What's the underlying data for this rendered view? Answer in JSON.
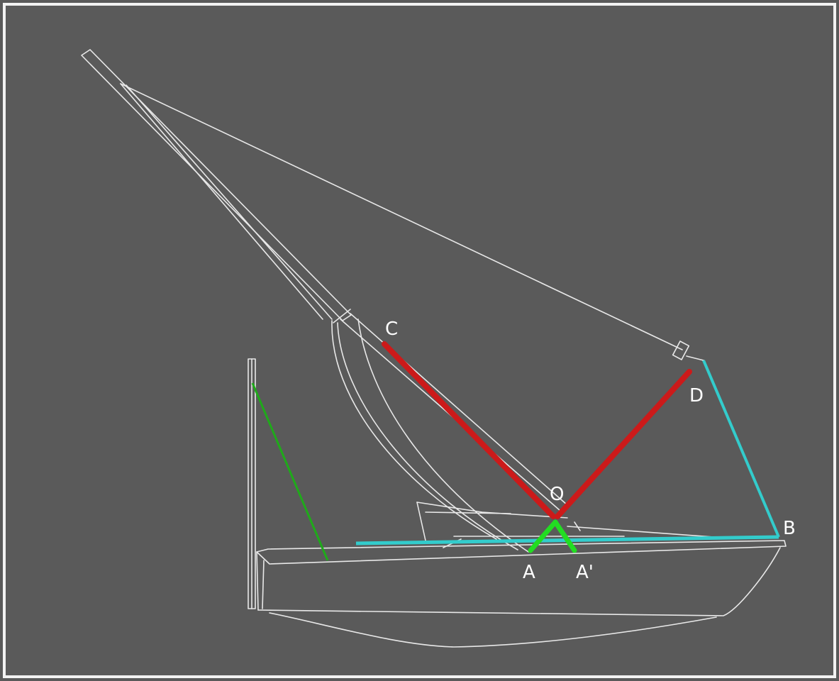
{
  "colors": {
    "background": "#5a5a5a",
    "frame": "#f2f2f2",
    "outline": "#e8e8e8",
    "red_members": "#cc1a1a",
    "cyan_members": "#33cccc",
    "green_members": "#22dd22",
    "dark_green_member": "#1faa1a"
  },
  "labels": {
    "point_c": "C",
    "point_d": "D",
    "point_o": "O",
    "point_b": "B",
    "point_a": "A",
    "point_a_prime": "A'"
  }
}
